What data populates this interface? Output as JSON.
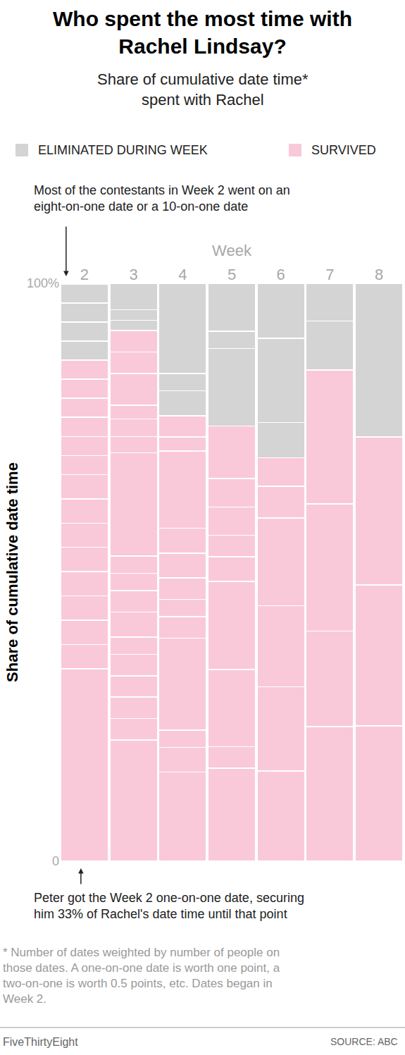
{
  "chart_data": {
    "type": "bar",
    "stacked": true,
    "title": "Who spent the most time with Rachel Lindsay?",
    "subtitle": "Share of cumulative date time* spent with Rachel",
    "x_label": "Week",
    "y_label": "Share of cumulative date time",
    "categories": [
      "2",
      "3",
      "4",
      "5",
      "6",
      "7",
      "8"
    ],
    "series": [
      {
        "name": "ELIMINATED DURING WEEK",
        "color": "#d4d4d4"
      },
      {
        "name": "SURVIVED",
        "color": "#f9c9d9"
      }
    ],
    "stacks": [
      {
        "values": [
          33.3,
          4.2,
          4.2,
          4.2,
          4.2,
          4.2,
          4.2,
          4.2,
          4.2,
          3.3,
          3.3,
          3.3,
          3.3,
          3.3,
          3.3,
          3.3,
          3.3,
          3.3,
          3.3
        ],
        "colors": [
          "#f9c9d9",
          "#f9c9d9",
          "#f9c9d9",
          "#f9c9d9",
          "#f9c9d9",
          "#f9c9d9",
          "#f9c9d9",
          "#f9c9d9",
          "#f9c9d9",
          "#f9c9d9",
          "#f9c9d9",
          "#f9c9d9",
          "#f9c9d9",
          "#f9c9d9",
          "#f9c9d9",
          "#d4d4d4",
          "#d4d4d4",
          "#d4d4d4",
          "#d4d4d4"
        ]
      },
      {
        "values": [
          21,
          3.7,
          3.7,
          3.7,
          3.7,
          3.0,
          4.3,
          3.7,
          3.0,
          3.0,
          17.9,
          2.8,
          3.0,
          2.4,
          5.5,
          3.7,
          3.7,
          1.8,
          1.8,
          4.6
        ],
        "colors": [
          "#f9c9d9",
          "#f9c9d9",
          "#f9c9d9",
          "#f9c9d9",
          "#f9c9d9",
          "#f9c9d9",
          "#f9c9d9",
          "#f9c9d9",
          "#f9c9d9",
          "#f9c9d9",
          "#f9c9d9",
          "#f9c9d9",
          "#f9c9d9",
          "#f9c9d9",
          "#f9c9d9",
          "#f9c9d9",
          "#f9c9d9",
          "#d4d4d4",
          "#d4d4d4",
          "#d4d4d4"
        ]
      },
      {
        "values": [
          15.4,
          4.3,
          3.0,
          15.9,
          3.7,
          3.0,
          3.7,
          4.3,
          4.3,
          13.4,
          2.4,
          3.7,
          4.3,
          3.0,
          15.6
        ],
        "colors": [
          "#f9c9d9",
          "#f9c9d9",
          "#f9c9d9",
          "#f9c9d9",
          "#f9c9d9",
          "#f9c9d9",
          "#f9c9d9",
          "#f9c9d9",
          "#f9c9d9",
          "#f9c9d9",
          "#f9c9d9",
          "#f9c9d9",
          "#d4d4d4",
          "#d4d4d4",
          "#d4d4d4"
        ]
      },
      {
        "values": [
          16.1,
          3.7,
          13.4,
          15.2,
          4.3,
          3.7,
          4.9,
          4.9,
          9.1,
          13.4,
          3.0,
          8.3
        ],
        "colors": [
          "#f9c9d9",
          "#f9c9d9",
          "#f9c9d9",
          "#f9c9d9",
          "#f9c9d9",
          "#f9c9d9",
          "#f9c9d9",
          "#f9c9d9",
          "#f9c9d9",
          "#d4d4d4",
          "#d4d4d4",
          "#d4d4d4"
        ]
      },
      {
        "values": [
          15.6,
          14.6,
          14.0,
          15.2,
          5.5,
          4.9,
          6.1,
          14.6,
          9.5
        ],
        "colors": [
          "#f9c9d9",
          "#f9c9d9",
          "#f9c9d9",
          "#f9c9d9",
          "#f9c9d9",
          "#f9c9d9",
          "#d4d4d4",
          "#d4d4d4",
          "#d4d4d4"
        ]
      },
      {
        "values": [
          23.3,
          16.5,
          22.0,
          23.2,
          8.5,
          6.5
        ],
        "colors": [
          "#f9c9d9",
          "#f9c9d9",
          "#f9c9d9",
          "#f9c9d9",
          "#d4d4d4",
          "#d4d4d4"
        ]
      },
      {
        "values": [
          23.4,
          24.4,
          25.6,
          26.6
        ],
        "colors": [
          "#f9c9d9",
          "#f9c9d9",
          "#f9c9d9",
          "#d4d4d4"
        ]
      }
    ],
    "ylim": [
      0,
      100
    ],
    "yticks": [
      0,
      {
        "value": 100,
        "label": "100%"
      }
    ],
    "annotations": [
      {
        "text": "Most of the contestants in Week 2 went on an eight-on-one date or a 10-on-one date",
        "category": "2"
      },
      {
        "text": "Peter got the Week 2 one-on-one date, securing him 33% of Rachel's date time until that point",
        "category": "2"
      }
    ],
    "note": "* Number of dates weighted by number of people on those dates. A one-on-one date is worth one point, a two-on-one is worth 0.5 points, etc. Dates began in Week 2.",
    "credit": "FiveThirtyEight",
    "source": "SOURCE: ABC"
  }
}
